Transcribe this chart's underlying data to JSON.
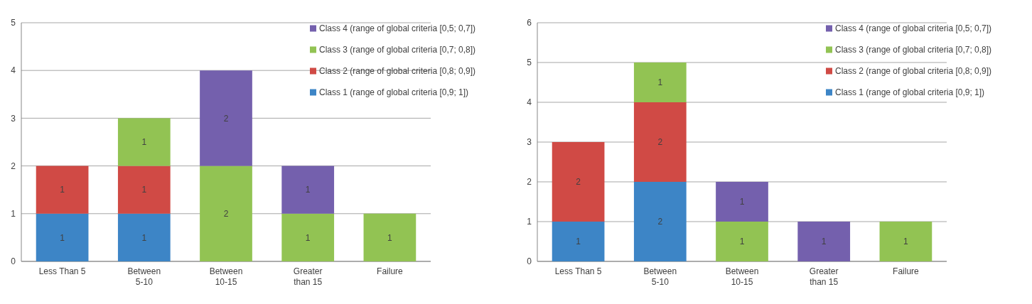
{
  "chart_data": [
    {
      "type": "bar",
      "stacked": true,
      "categories": [
        "Less Than 5",
        "Between 5-10",
        "Between 10-15",
        "Greater than 15",
        "Failure"
      ],
      "ylim": [
        0,
        5
      ],
      "yticks": [
        0,
        1,
        2,
        3,
        4,
        5
      ],
      "grid": "y",
      "legend": "top right",
      "data_labels": true,
      "series": [
        {
          "name": "Class 1 (range of global criteria [0,9; 1])",
          "color": "#3d85c6",
          "values": [
            1,
            1,
            null,
            null,
            null
          ]
        },
        {
          "name": "Class 2 (range of global criteria [0,8; 0,9])",
          "color": "#d04a45",
          "values": [
            1,
            1,
            null,
            null,
            null
          ]
        },
        {
          "name": "Class 3 (range of global criteria [0,7; 0,8])",
          "color": "#92c353",
          "values": [
            null,
            1,
            2,
            1,
            1
          ]
        },
        {
          "name": "Class 4 (range of global criteria [0,5; 0,7])",
          "color": "#7460ad",
          "values": [
            null,
            null,
            2,
            1,
            null
          ]
        }
      ]
    },
    {
      "type": "bar",
      "stacked": true,
      "categories": [
        "Less Than 5",
        "Between 5-10",
        "Between 10-15",
        "Greater than 15",
        "Failure"
      ],
      "ylim": [
        0,
        6
      ],
      "yticks": [
        0,
        1,
        2,
        3,
        4,
        5,
        6
      ],
      "grid": "y",
      "legend": "top right",
      "data_labels": true,
      "series": [
        {
          "name": "Class 1 (range of global criteria [0,9; 1])",
          "color": "#3d85c6",
          "values": [
            1,
            2,
            null,
            null,
            null
          ]
        },
        {
          "name": "Class 2 (range of global criteria [0,8; 0,9])",
          "color": "#d04a45",
          "values": [
            2,
            2,
            null,
            null,
            null
          ]
        },
        {
          "name": "Class 3 (range of global criteria [0,7; 0,8])",
          "color": "#92c353",
          "values": [
            null,
            1,
            1,
            null,
            1
          ]
        },
        {
          "name": "Class 4 (range of global criteria [0,5; 0,7])",
          "color": "#7460ad",
          "values": [
            null,
            null,
            1,
            1,
            null
          ]
        }
      ]
    }
  ]
}
